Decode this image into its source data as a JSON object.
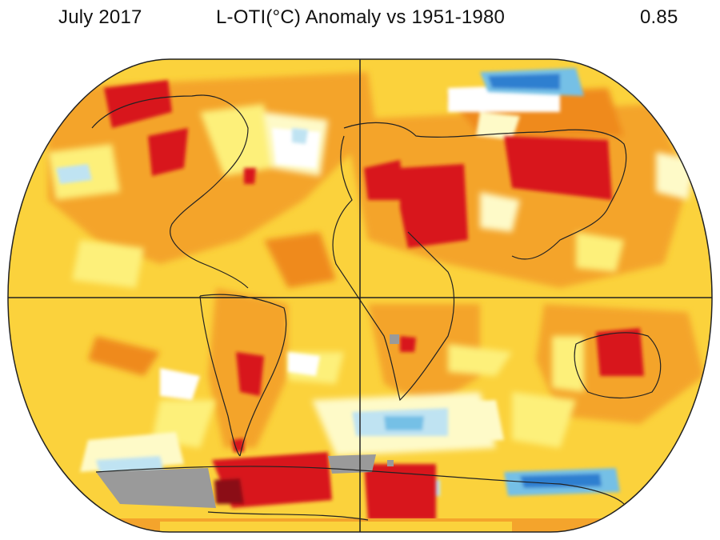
{
  "header": {
    "date": "July 2017",
    "title": "L-OTI(°C) Anomaly vs 1951-1980",
    "global_mean": "0.85"
  },
  "map": {
    "projection": "Robinson",
    "colors": {
      "deep_red": "#d8161b",
      "dark_red": "#8b0d12",
      "orange": "#f4a42c",
      "dark_orange": "#ef8a1f",
      "yellow": "#fbd23c",
      "pale_yellow": "#fdf07a",
      "light_yellow": "#fefac8",
      "white": "#ffffff",
      "light_blue": "#bfe3f2",
      "mid_blue": "#74c0e6",
      "blue": "#2d7fd0",
      "gray_nodata": "#9a9a9a",
      "coastline": "#222222",
      "grid": "#222222"
    }
  }
}
